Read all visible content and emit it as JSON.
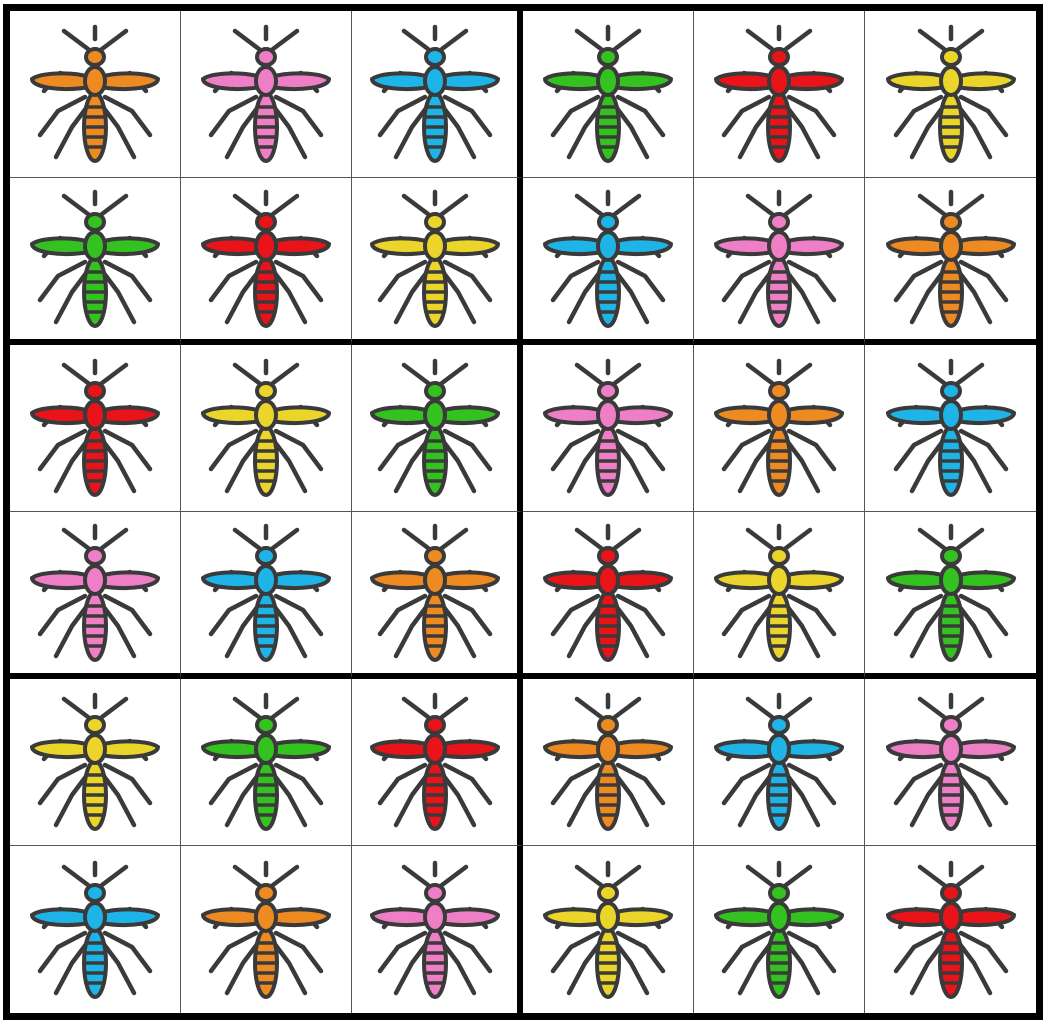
{
  "palette": {
    "orange": "#ee8a22",
    "pink": "#ee7fc6",
    "blue": "#1fb4e8",
    "green": "#33c21f",
    "red": "#e8141a",
    "yellow": "#ebd52a",
    "outline": "#3a3a3a"
  },
  "puzzle": {
    "box_rows": 2,
    "box_cols": 3,
    "rows": [
      [
        "orange",
        "pink",
        "blue",
        "green",
        "red",
        "yellow"
      ],
      [
        "green",
        "red",
        "yellow",
        "blue",
        "pink",
        "orange"
      ],
      [
        "red",
        "yellow",
        "green",
        "pink",
        "orange",
        "blue"
      ],
      [
        "pink",
        "blue",
        "orange",
        "red",
        "yellow",
        "green"
      ],
      [
        "yellow",
        "green",
        "red",
        "orange",
        "blue",
        "pink"
      ],
      [
        "blue",
        "orange",
        "pink",
        "yellow",
        "green",
        "red"
      ]
    ]
  }
}
